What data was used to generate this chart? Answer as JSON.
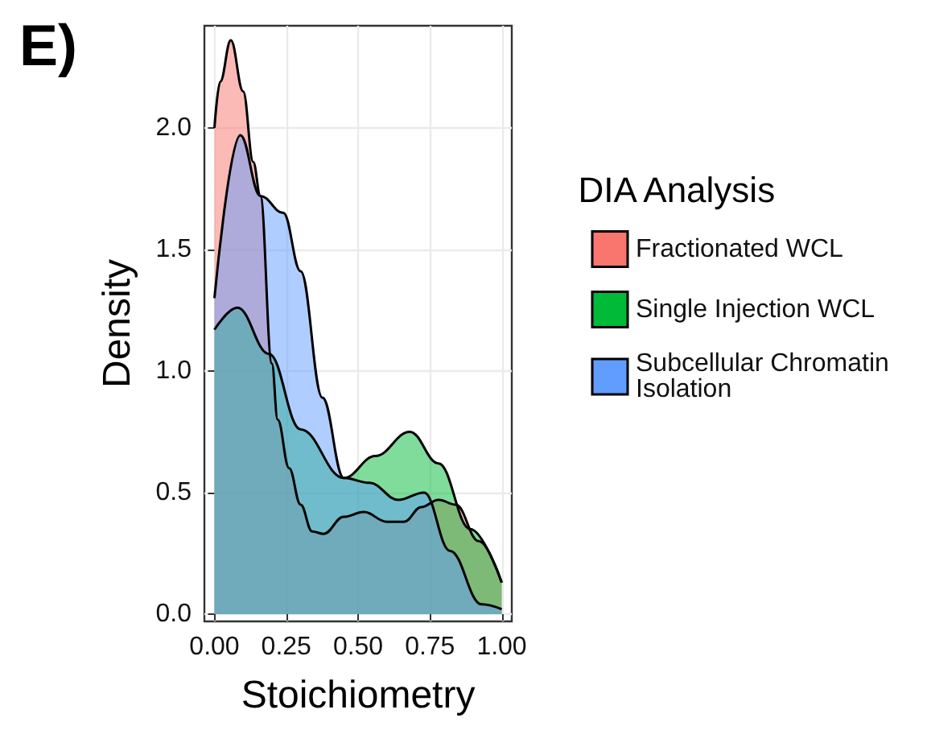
{
  "chart_data": {
    "type": "area",
    "xlabel": "Stoichiometry",
    "ylabel": "Density",
    "legend_title": "DIA Analysis",
    "annotations": [
      "E)"
    ],
    "xlim": [
      -0.035,
      1.035
    ],
    "ylim": [
      -0.03,
      2.42
    ],
    "xticks": [
      {
        "value": 0,
        "label": "0.00"
      },
      {
        "value": 0.25,
        "label": "0.25"
      },
      {
        "value": 0.5,
        "label": "0.50"
      },
      {
        "value": 0.75,
        "label": "0.75"
      },
      {
        "value": 1,
        "label": "1.00"
      }
    ],
    "yticks": [
      {
        "value": 0,
        "label": "0.0"
      },
      {
        "value": 0.5,
        "label": "0.5"
      },
      {
        "value": 1,
        "label": "1.0"
      },
      {
        "value": 1.5,
        "label": "1.5"
      },
      {
        "value": 2,
        "label": "2.0"
      }
    ],
    "grid": true,
    "legend": "right",
    "series": [
      {
        "name": "Fractionated WCL",
        "color": "#f8766d",
        "x": [
          0,
          0.02,
          0.057,
          0.1,
          0.135,
          0.16,
          0.2,
          0.22,
          0.26,
          0.3,
          0.34,
          0.38,
          0.45,
          0.52,
          0.6,
          0.66,
          0.72,
          0.78,
          0.84,
          0.92,
          1.0
        ],
        "values": [
          2.0,
          2.19,
          2.36,
          2.15,
          1.86,
          1.72,
          1.03,
          0.8,
          0.6,
          0.45,
          0.34,
          0.33,
          0.4,
          0.42,
          0.38,
          0.38,
          0.44,
          0.47,
          0.45,
          0.3,
          0.13
        ]
      },
      {
        "name": "Single Injection WCL",
        "color": "#00ba38",
        "x": [
          0,
          0.08,
          0.19,
          0.3,
          0.45,
          0.56,
          0.68,
          0.78,
          0.89,
          1.0
        ],
        "values": [
          1.17,
          1.26,
          1.07,
          0.76,
          0.56,
          0.65,
          0.75,
          0.62,
          0.35,
          0.13
        ]
      },
      {
        "name": "Subcellular Chromatin Isolation",
        "color": "#619cff",
        "x": [
          0,
          0.09,
          0.16,
          0.24,
          0.3,
          0.376,
          0.45,
          0.54,
          0.64,
          0.73,
          0.82,
          0.93,
          1.0
        ],
        "values": [
          1.3,
          1.97,
          1.72,
          1.65,
          1.41,
          0.89,
          0.56,
          0.54,
          0.47,
          0.5,
          0.26,
          0.04,
          0.02
        ]
      }
    ]
  }
}
